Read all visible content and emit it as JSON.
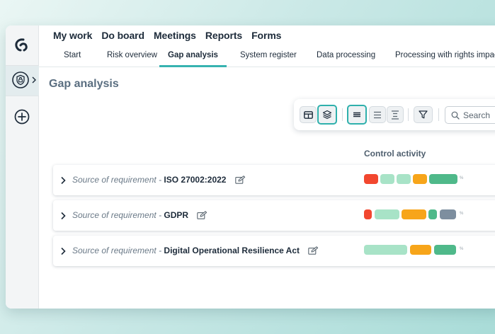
{
  "top_nav": [
    "My work",
    "Do board",
    "Meetings",
    "Reports",
    "Forms"
  ],
  "sub_nav": {
    "tabs": [
      "Start",
      "Risk overview",
      "Gap analysis",
      "System register",
      "Data processing",
      "Processing with rights impact"
    ],
    "active_tab": "Gap analysis"
  },
  "page": {
    "title": "Gap analysis"
  },
  "toolbar": {
    "buttons": [
      "table-view-icon",
      "layers-icon",
      "density-compact-icon",
      "density-normal-icon",
      "density-spacious-icon",
      "filter-icon"
    ],
    "selected": [
      "layers-icon",
      "density-compact-icon"
    ],
    "search_placeholder": "Search"
  },
  "table": {
    "column_header": "Control activity",
    "rows": [
      {
        "prefix": "Source of requirement - ",
        "name": "ISO 27002:2022",
        "bars": [
          {
            "color": "#f2472f"
          },
          {
            "color": "#a8e3c7"
          },
          {
            "color": "#a8e3c7"
          },
          {
            "color": "#f7a51a"
          },
          {
            "color": "#4fb98a"
          }
        ]
      },
      {
        "prefix": "Source of requirement - ",
        "name": "GDPR",
        "bars": [
          {
            "color": "#f2472f"
          },
          {
            "color": "#a8e3c7"
          },
          {
            "color": "#f7a51a"
          },
          {
            "color": "#4fb98a"
          },
          {
            "color": "#7d8e9f"
          }
        ]
      },
      {
        "prefix": "Source of requirement - ",
        "name": "Digital Operational Resilience Act",
        "bars": [
          {
            "color": "#a8e3c7"
          },
          {
            "color": "#f7a51a"
          },
          {
            "color": "#4fb98a"
          }
        ]
      }
    ]
  },
  "colors": {
    "accent": "#37b3b0",
    "text_dark": "#1d2b3a",
    "status_red": "#f2472f",
    "status_orange": "#f7a51a",
    "status_green": "#4fb98a",
    "status_light_green": "#a8e3c7",
    "status_grey": "#7d8e9f"
  }
}
